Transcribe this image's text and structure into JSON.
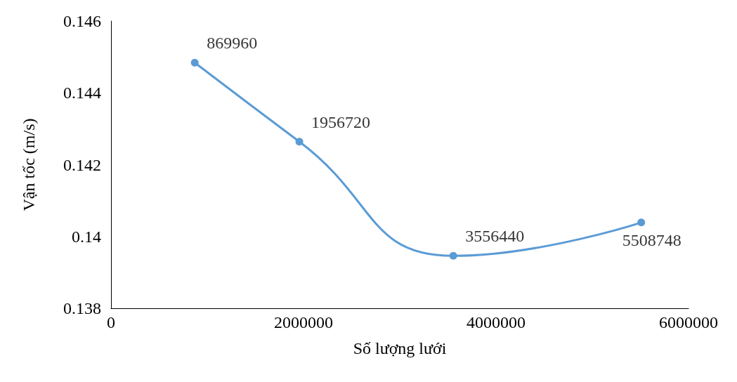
{
  "chart_data": {
    "type": "line",
    "xlabel": "Số lượng lưới",
    "ylabel": "Vận tốc (m/s)",
    "x": [
      869960,
      1956720,
      3556440,
      5508748
    ],
    "series": [
      {
        "color": "#5b9bd5",
        "values": [
          0.14484,
          0.14264,
          0.13946,
          0.14039
        ]
      }
    ],
    "xlim": [
      0,
      6000000
    ],
    "xticks": [
      0,
      2000000,
      4000000,
      6000000
    ],
    "ylim": [
      0.138,
      0.146
    ],
    "yticks": [
      0.138,
      0.14,
      0.142,
      0.144,
      0.146
    ],
    "marker": "circle",
    "line_style": "solid",
    "grid": false,
    "annotations": [
      {
        "text": "869960",
        "x": 869960,
        "y": 0.14484
      },
      {
        "text": "1956720",
        "x": 1956720,
        "y": 0.14264
      },
      {
        "text": "3556440",
        "x": 3556440,
        "y": 0.13946
      },
      {
        "text": "5508748",
        "x": 5508748,
        "y": 0.14039
      }
    ]
  }
}
